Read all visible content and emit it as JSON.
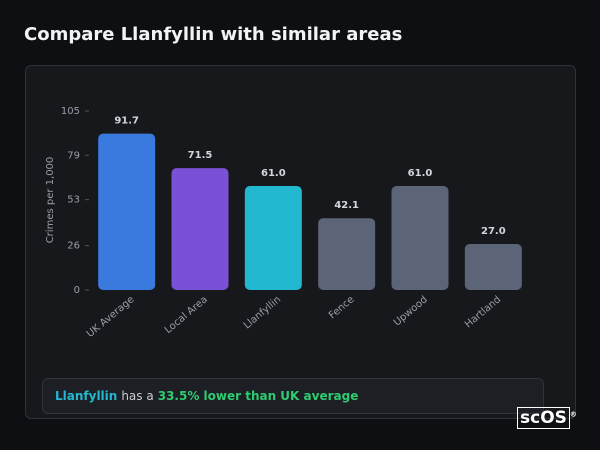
{
  "header": {
    "title": "Compare Llanfyllin with similar areas"
  },
  "chart_data": {
    "type": "bar",
    "y_label": "Crimes per 1,000",
    "categories": [
      "UK Average",
      "Local Area",
      "Llanfyllin",
      "Fence",
      "Upwood",
      "Hartland"
    ],
    "values": [
      91.7,
      71.5,
      61.0,
      42.1,
      61.0,
      27.0
    ],
    "value_labels": [
      "91.7",
      "71.5",
      "61.0",
      "42.1",
      "61.0",
      "27.0"
    ],
    "colors": [
      "#3a79de",
      "#7a50d6",
      "#22b9d0",
      "#5c6577",
      "#5c6577",
      "#5c6577"
    ],
    "ylim": [
      0,
      105
    ],
    "yticks": [
      0,
      26,
      53,
      79,
      105
    ],
    "grid": false
  },
  "footer": {
    "area": "Llanfyllin",
    "text": "has a",
    "highlight": "33.5% lower than UK average"
  },
  "logo": {
    "text": "scOS",
    "mark": "®"
  }
}
